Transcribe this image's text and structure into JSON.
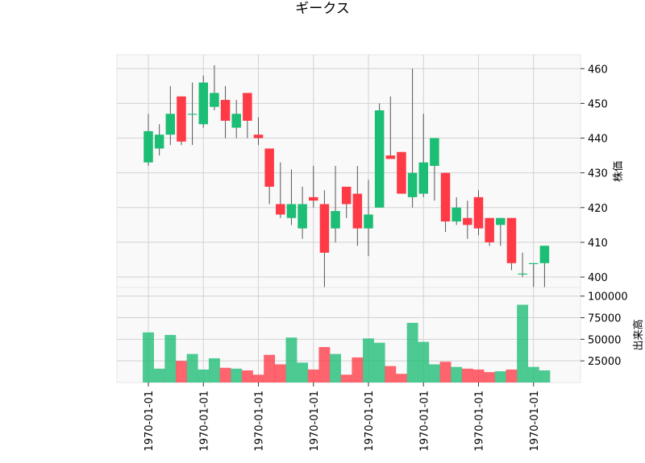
{
  "chart_data": {
    "type": "candlestick",
    "title": "ギークス",
    "up_color": "#1cbd74",
    "down_color": "#fe3a46",
    "x_tick_labels": [
      "1970-01-01",
      "1970-01-01",
      "1970-01-01",
      "1970-01-01",
      "1970-01-01",
      "1970-01-01",
      "1970-01-01",
      "1970-01-01"
    ],
    "x_tick_positions": [
      0,
      5,
      10,
      15,
      20,
      25,
      30,
      35
    ],
    "price_panel": {
      "ylabel": "株価",
      "ylim": [
        397,
        464
      ],
      "yticks": [
        400,
        410,
        420,
        430,
        440,
        450,
        460
      ]
    },
    "volume_panel": {
      "ylabel": "出来高",
      "ylim": [
        0,
        110000
      ],
      "yticks": [
        25000,
        50000,
        75000,
        100000
      ]
    },
    "candles": [
      {
        "o": 433,
        "h": 447,
        "l": 432,
        "c": 442,
        "v": 58000
      },
      {
        "o": 437,
        "h": 444,
        "l": 435,
        "c": 441,
        "v": 16000
      },
      {
        "o": 441,
        "h": 455,
        "l": 438,
        "c": 447,
        "v": 55000
      },
      {
        "o": 452,
        "h": 452,
        "l": 438,
        "c": 439,
        "v": 25000
      },
      {
        "o": 447,
        "h": 456,
        "l": 438,
        "c": 447,
        "v": 33000
      },
      {
        "o": 444,
        "h": 458,
        "l": 443,
        "c": 456,
        "v": 15000
      },
      {
        "o": 449,
        "h": 461,
        "l": 448,
        "c": 453,
        "v": 28000
      },
      {
        "o": 451,
        "h": 455,
        "l": 440,
        "c": 445,
        "v": 17000
      },
      {
        "o": 443,
        "h": 451,
        "l": 440,
        "c": 447,
        "v": 16000
      },
      {
        "o": 453,
        "h": 453,
        "l": 440,
        "c": 445,
        "v": 14000
      },
      {
        "o": 441,
        "h": 446,
        "l": 438,
        "c": 440,
        "v": 9000
      },
      {
        "o": 437,
        "h": 437,
        "l": 421,
        "c": 426,
        "v": 32000
      },
      {
        "o": 421,
        "h": 433,
        "l": 417,
        "c": 418,
        "v": 21000
      },
      {
        "o": 417,
        "h": 431,
        "l": 415,
        "c": 421,
        "v": 52000
      },
      {
        "o": 414,
        "h": 426,
        "l": 411,
        "c": 421,
        "v": 23000
      },
      {
        "o": 423,
        "h": 432,
        "l": 420,
        "c": 422,
        "v": 15000
      },
      {
        "o": 421,
        "h": 425,
        "l": 396,
        "c": 407,
        "v": 41000
      },
      {
        "o": 414,
        "h": 432,
        "l": 410,
        "c": 419,
        "v": 33000
      },
      {
        "o": 426,
        "h": 426,
        "l": 417,
        "c": 421,
        "v": 9000
      },
      {
        "o": 424,
        "h": 432,
        "l": 409,
        "c": 414,
        "v": 29000
      },
      {
        "o": 414,
        "h": 428,
        "l": 406,
        "c": 418,
        "v": 51000
      },
      {
        "o": 420,
        "h": 450,
        "l": 420,
        "c": 448,
        "v": 46000
      },
      {
        "o": 435,
        "h": 452,
        "l": 434,
        "c": 434,
        "v": 19000
      },
      {
        "o": 436,
        "h": 436,
        "l": 424,
        "c": 424,
        "v": 10000
      },
      {
        "o": 423,
        "h": 460,
        "l": 420,
        "c": 430,
        "v": 69000
      },
      {
        "o": 424,
        "h": 447,
        "l": 423,
        "c": 433,
        "v": 47000
      },
      {
        "o": 432,
        "h": 440,
        "l": 422,
        "c": 440,
        "v": 21000
      },
      {
        "o": 430,
        "h": 430,
        "l": 413,
        "c": 416,
        "v": 24000
      },
      {
        "o": 416,
        "h": 423,
        "l": 415,
        "c": 420,
        "v": 18000
      },
      {
        "o": 417,
        "h": 422,
        "l": 411,
        "c": 415,
        "v": 16000
      },
      {
        "o": 423,
        "h": 425,
        "l": 412,
        "c": 414,
        "v": 15000
      },
      {
        "o": 417,
        "h": 417,
        "l": 409,
        "c": 410,
        "v": 12000
      },
      {
        "o": 415,
        "h": 417,
        "l": 409,
        "c": 417,
        "v": 13000
      },
      {
        "o": 417,
        "h": 417,
        "l": 402,
        "c": 404,
        "v": 15000
      },
      {
        "o": 401,
        "h": 407,
        "l": 400,
        "c": 401,
        "v": 90000
      },
      {
        "o": 404,
        "h": 404,
        "l": 397,
        "c": 404,
        "v": 18000
      },
      {
        "o": 404,
        "h": 409,
        "l": 397,
        "c": 409,
        "v": 14000
      }
    ]
  }
}
